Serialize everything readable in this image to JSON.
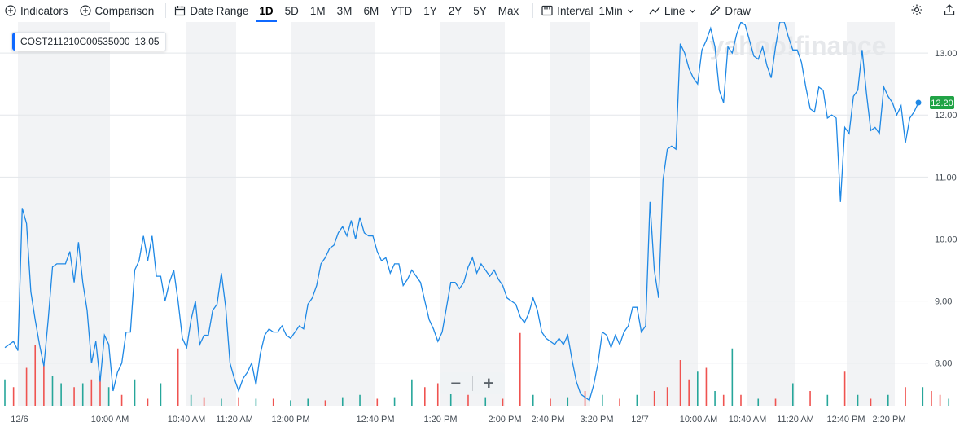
{
  "toolbar": {
    "indicators": "Indicators",
    "comparison": "Comparison",
    "date_range": "Date Range",
    "ranges": [
      "1D",
      "5D",
      "1M",
      "3M",
      "6M",
      "YTD",
      "1Y",
      "2Y",
      "5Y",
      "Max"
    ],
    "active_range": "1D",
    "interval_label": "Interval",
    "interval_value": "1Min",
    "chart_type": "Line",
    "draw": "Draw"
  },
  "legend": {
    "symbol": "COST211210C00535000",
    "value": "13.05"
  },
  "watermark": "yahoo!finance",
  "zoom": {
    "minus": "−",
    "plus": "+"
  },
  "colors": {
    "line": "#1e88e5",
    "up": "#26a69a",
    "down": "#ef5350",
    "badge": "#21a346",
    "accent": "#0f69ff"
  },
  "chart_data": {
    "type": "line",
    "title": "",
    "xlabel": "",
    "ylabel": "",
    "ylim": [
      7.3,
      13.5
    ],
    "y_ticks": [
      8.0,
      9.0,
      10.0,
      11.0,
      12.0,
      13.0
    ],
    "y_tick_labels": [
      "8.00",
      "9.00",
      "10.00",
      "11.00",
      "12.00",
      "13.00"
    ],
    "x_tick_labels": [
      "12/6",
      "10:00 AM",
      "10:40 AM",
      "11:20 AM",
      "12:00 PM",
      "12:40 PM",
      "1:20 PM",
      "2:00 PM",
      "2:40 PM",
      "3:20 PM",
      "12/7",
      "10:00 AM",
      "10:40 AM",
      "11:20 AM",
      "12:40 PM",
      "2:20 PM"
    ],
    "last_price": "12.20",
    "grid": true,
    "series": [
      {
        "values": [
          8.25,
          8.3,
          8.35,
          8.2,
          10.5,
          10.25,
          9.15,
          8.7,
          8.3,
          7.95,
          8.7,
          9.55,
          9.6,
          9.6,
          9.6,
          9.8,
          9.3,
          9.95,
          9.3,
          8.85,
          8.0,
          8.35,
          7.7,
          8.45,
          8.3,
          7.55,
          7.85,
          8.0,
          8.5,
          8.5,
          9.5,
          9.65,
          10.05,
          9.65,
          10.05,
          9.4,
          9.4,
          9.0,
          9.3,
          9.5,
          9.0,
          8.4,
          8.25,
          8.7,
          9.0,
          8.3,
          8.45,
          8.45,
          8.85,
          8.95,
          9.45,
          8.9,
          8.0,
          7.75,
          7.55,
          7.75,
          7.85,
          8.0,
          7.65,
          8.15,
          8.45,
          8.55,
          8.5,
          8.5,
          8.6,
          8.45,
          8.4,
          8.5,
          8.6,
          8.55,
          8.95,
          9.05,
          9.25,
          9.6,
          9.7,
          9.85,
          9.9,
          10.1,
          10.2,
          10.05,
          10.3,
          10.0,
          10.35,
          10.1,
          10.05,
          10.05,
          9.8,
          9.65,
          9.7,
          9.45,
          9.6,
          9.6,
          9.25,
          9.35,
          9.5,
          9.4,
          9.3,
          9.0,
          8.7,
          8.55,
          8.35,
          8.5,
          8.9,
          9.3,
          9.3,
          9.2,
          9.3,
          9.55,
          9.7,
          9.45,
          9.6,
          9.5,
          9.4,
          9.5,
          9.35,
          9.25,
          9.05,
          9.0,
          8.95,
          8.75,
          8.65,
          8.8,
          9.05,
          8.85,
          8.5,
          8.4,
          8.35,
          8.3,
          8.4,
          8.3,
          8.45,
          8.05,
          7.7,
          7.5,
          7.45,
          7.4,
          7.65,
          8.0,
          8.5,
          8.45,
          8.25,
          8.45,
          8.3,
          8.5,
          8.6,
          8.9,
          8.9,
          8.5,
          8.6,
          10.6,
          9.5,
          9.05,
          10.95,
          11.45,
          11.5,
          11.45,
          13.15,
          13.0,
          12.75,
          12.6,
          12.5,
          13.05,
          13.2,
          13.4,
          13.1,
          12.4,
          12.2,
          13.1,
          13.0,
          13.3,
          13.5,
          13.45,
          13.2,
          12.95,
          12.9,
          13.1,
          12.8,
          12.6,
          13.1,
          13.5,
          13.5,
          13.25,
          13.05,
          13.05,
          12.85,
          12.45,
          12.1,
          12.05,
          12.45,
          12.4,
          11.95,
          12.0,
          11.95,
          10.6,
          11.8,
          11.7,
          12.3,
          12.4,
          13.05,
          12.35,
          11.75,
          11.8,
          11.7,
          12.45,
          12.3,
          12.2,
          12.0,
          12.15,
          11.55,
          11.95,
          12.05,
          12.2
        ]
      }
    ],
    "volume_bars": [
      {
        "i": 0,
        "v": 0.35,
        "up": true
      },
      {
        "i": 2,
        "v": 0.25,
        "up": false
      },
      {
        "i": 5,
        "v": 0.5,
        "up": false
      },
      {
        "i": 7,
        "v": 0.8,
        "up": false
      },
      {
        "i": 9,
        "v": 0.55,
        "up": false
      },
      {
        "i": 11,
        "v": 0.4,
        "up": true
      },
      {
        "i": 13,
        "v": 0.3,
        "up": true
      },
      {
        "i": 16,
        "v": 0.25,
        "up": false
      },
      {
        "i": 18,
        "v": 0.3,
        "up": true
      },
      {
        "i": 20,
        "v": 0.35,
        "up": false
      },
      {
        "i": 22,
        "v": 0.4,
        "up": false
      },
      {
        "i": 24,
        "v": 0.25,
        "up": true
      },
      {
        "i": 27,
        "v": 0.15,
        "up": false
      },
      {
        "i": 30,
        "v": 0.35,
        "up": true
      },
      {
        "i": 33,
        "v": 0.1,
        "up": false
      },
      {
        "i": 36,
        "v": 0.3,
        "up": true
      },
      {
        "i": 40,
        "v": 0.75,
        "up": false
      },
      {
        "i": 43,
        "v": 0.15,
        "up": true
      },
      {
        "i": 46,
        "v": 0.12,
        "up": false
      },
      {
        "i": 50,
        "v": 0.1,
        "up": true
      },
      {
        "i": 54,
        "v": 0.12,
        "up": false
      },
      {
        "i": 58,
        "v": 0.1,
        "up": true
      },
      {
        "i": 62,
        "v": 0.1,
        "up": false
      },
      {
        "i": 66,
        "v": 0.08,
        "up": true
      },
      {
        "i": 70,
        "v": 0.1,
        "up": true
      },
      {
        "i": 74,
        "v": 0.08,
        "up": false
      },
      {
        "i": 78,
        "v": 0.12,
        "up": true
      },
      {
        "i": 82,
        "v": 0.15,
        "up": true
      },
      {
        "i": 86,
        "v": 0.1,
        "up": false
      },
      {
        "i": 90,
        "v": 0.12,
        "up": true
      },
      {
        "i": 94,
        "v": 0.35,
        "up": true
      },
      {
        "i": 97,
        "v": 0.25,
        "up": false
      },
      {
        "i": 100,
        "v": 0.3,
        "up": false
      },
      {
        "i": 103,
        "v": 0.2,
        "up": true
      },
      {
        "i": 107,
        "v": 0.15,
        "up": false
      },
      {
        "i": 111,
        "v": 0.12,
        "up": true
      },
      {
        "i": 115,
        "v": 0.1,
        "up": false
      },
      {
        "i": 119,
        "v": 0.95,
        "up": false
      },
      {
        "i": 122,
        "v": 0.15,
        "up": true
      },
      {
        "i": 126,
        "v": 0.1,
        "up": false
      },
      {
        "i": 130,
        "v": 0.12,
        "up": true
      },
      {
        "i": 134,
        "v": 0.2,
        "up": false
      },
      {
        "i": 138,
        "v": 0.15,
        "up": true
      },
      {
        "i": 142,
        "v": 0.1,
        "up": false
      },
      {
        "i": 146,
        "v": 0.15,
        "up": true
      },
      {
        "i": 150,
        "v": 0.2,
        "up": false
      },
      {
        "i": 153,
        "v": 0.25,
        "up": false
      },
      {
        "i": 156,
        "v": 0.6,
        "up": false
      },
      {
        "i": 158,
        "v": 0.35,
        "up": false
      },
      {
        "i": 160,
        "v": 0.45,
        "up": true
      },
      {
        "i": 162,
        "v": 0.5,
        "up": false
      },
      {
        "i": 164,
        "v": 0.2,
        "up": true
      },
      {
        "i": 166,
        "v": 0.15,
        "up": false
      },
      {
        "i": 168,
        "v": 0.75,
        "up": true
      },
      {
        "i": 170,
        "v": 0.15,
        "up": false
      },
      {
        "i": 174,
        "v": 0.1,
        "up": true
      },
      {
        "i": 178,
        "v": 0.1,
        "up": false
      },
      {
        "i": 182,
        "v": 0.3,
        "up": true
      },
      {
        "i": 186,
        "v": 0.2,
        "up": false
      },
      {
        "i": 190,
        "v": 0.15,
        "up": true
      },
      {
        "i": 194,
        "v": 0.45,
        "up": false
      },
      {
        "i": 197,
        "v": 0.15,
        "up": true
      },
      {
        "i": 200,
        "v": 0.1,
        "up": false
      },
      {
        "i": 204,
        "v": 0.15,
        "up": true
      },
      {
        "i": 208,
        "v": 0.25,
        "up": false
      },
      {
        "i": 212,
        "v": 0.25,
        "up": true
      },
      {
        "i": 214,
        "v": 0.2,
        "up": false
      },
      {
        "i": 216,
        "v": 0.15,
        "up": false
      },
      {
        "i": 218,
        "v": 0.1,
        "up": true
      }
    ]
  }
}
